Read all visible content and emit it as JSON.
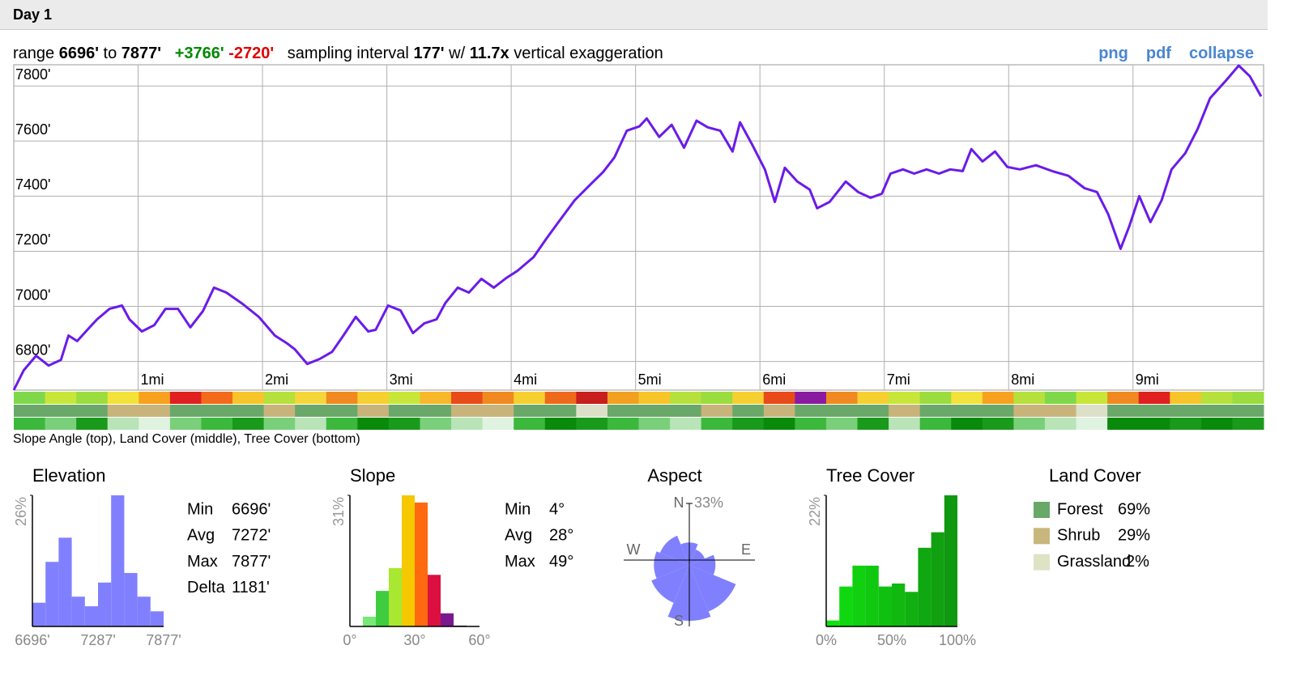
{
  "header": {
    "title": "Day 1"
  },
  "summary": {
    "range_label": "range",
    "min": "6696'",
    "to": "to",
    "max": "7877'",
    "gain": "+3766'",
    "loss": "-2720'",
    "interval_label": "sampling interval",
    "interval": "177'",
    "with": "w/",
    "exaggeration": "11.7x",
    "exaggeration_label": "vertical exaggeration"
  },
  "links": [
    "png",
    "pdf",
    "collapse"
  ],
  "chart_data": [
    {
      "type": "line",
      "color": "#6a1be8",
      "x": [
        0,
        0.08,
        0.18,
        0.28,
        0.38,
        0.44,
        0.51,
        0.61,
        0.67,
        0.77,
        0.87,
        0.93,
        1.03,
        1.13,
        1.22,
        1.32,
        1.42,
        1.52,
        1.61,
        1.71,
        1.84,
        1.97,
        2.1,
        2.2,
        2.26,
        2.36,
        2.46,
        2.56,
        2.65,
        2.75,
        2.85,
        2.91,
        3.01,
        3.11,
        3.21,
        3.3,
        3.4,
        3.47,
        3.57,
        3.66,
        3.76,
        3.86,
        3.96,
        4.05,
        4.18,
        4.28,
        4.38,
        4.51,
        4.64,
        4.74,
        4.83,
        4.93,
        5.03,
        5.09,
        5.19,
        5.29,
        5.39,
        5.49,
        5.58,
        5.68,
        5.78,
        5.84,
        5.94,
        6.04,
        6.12,
        6.2,
        6.3,
        6.4,
        6.46,
        6.56,
        6.69,
        6.79,
        6.89,
        6.98,
        7.05,
        7.15,
        7.24,
        7.34,
        7.44,
        7.53,
        7.63,
        7.7,
        7.79,
        7.89,
        7.99,
        8.09,
        8.22,
        8.35,
        8.48,
        8.61,
        8.71,
        8.8,
        8.9,
        8.97,
        9.05,
        9.14,
        9.23,
        9.31,
        9.42,
        9.52,
        9.62,
        9.75,
        9.85,
        9.94,
        10.03
      ],
      "values": [
        6696,
        6768,
        6821,
        6785,
        6806,
        6894,
        6874,
        6924,
        6953,
        6991,
        7003,
        6953,
        6909,
        6932,
        6991,
        6991,
        6924,
        6982,
        7068,
        7050,
        7009,
        6962,
        6894,
        6865,
        6844,
        6791,
        6809,
        6835,
        6894,
        6962,
        6909,
        6915,
        7003,
        6985,
        6903,
        6938,
        6953,
        7012,
        7068,
        7050,
        7100,
        7068,
        7103,
        7129,
        7179,
        7244,
        7306,
        7385,
        7444,
        7488,
        7541,
        7638,
        7653,
        7682,
        7615,
        7659,
        7576,
        7674,
        7650,
        7638,
        7562,
        7668,
        7585,
        7497,
        7379,
        7503,
        7453,
        7424,
        7356,
        7379,
        7453,
        7415,
        7394,
        7409,
        7482,
        7497,
        7482,
        7497,
        7482,
        7497,
        7491,
        7571,
        7526,
        7562,
        7506,
        7497,
        7512,
        7491,
        7474,
        7429,
        7415,
        7335,
        7209,
        7291,
        7400,
        7306,
        7385,
        7497,
        7556,
        7644,
        7756,
        7821,
        7874,
        7835,
        7762
      ],
      "xlim": [
        0,
        10.05
      ],
      "ylim": [
        6696,
        7877
      ],
      "xticks": [
        {
          "value": 1,
          "label": "1mi"
        },
        {
          "value": 2,
          "label": "2mi"
        },
        {
          "value": 3,
          "label": "3mi"
        },
        {
          "value": 4,
          "label": "4mi"
        },
        {
          "value": 5,
          "label": "5mi"
        },
        {
          "value": 6,
          "label": "6mi"
        },
        {
          "value": 7,
          "label": "7mi"
        },
        {
          "value": 8,
          "label": "8mi"
        },
        {
          "value": 9,
          "label": "9mi"
        }
      ],
      "yticks": [
        {
          "value": 6800,
          "label": "6800'"
        },
        {
          "value": 7000,
          "label": "7000'"
        },
        {
          "value": 7200,
          "label": "7200'"
        },
        {
          "value": 7400,
          "label": "7400'"
        },
        {
          "value": 7600,
          "label": "7600'"
        },
        {
          "value": 7800,
          "label": "7800'"
        }
      ],
      "grid": true
    },
    {
      "type": "histogram",
      "title": "Elevation",
      "color": "#8080ff",
      "bins": [
        6696,
        6814.1,
        6932.2,
        7050.3,
        7168.4,
        7286.5,
        7404.6,
        7522.7,
        7640.8,
        7758.9,
        7877
      ],
      "values": [
        4.7,
        12.8,
        17.6,
        5.9,
        4,
        8.7,
        26,
        10.6,
        5.9,
        3
      ],
      "xlim": [
        6696,
        7877
      ],
      "ylim": [
        0,
        26
      ],
      "xticks": [
        {
          "value": 6696,
          "label": "6696'"
        },
        {
          "value": 7287,
          "label": "7287'"
        },
        {
          "value": 7877,
          "label": "7877'"
        }
      ],
      "yticks": [
        {
          "value": 26,
          "label": "26%"
        }
      ],
      "stats": [
        [
          "Min",
          "6696'"
        ],
        [
          "Avg",
          "7272'"
        ],
        [
          "Max",
          "7877'"
        ],
        [
          "Delta",
          "1181'"
        ]
      ]
    },
    {
      "type": "histogram",
      "title": "Slope",
      "colors": [
        "#90ee90",
        "#78e878",
        "#40cc40",
        "#a8e830",
        "#f5c800",
        "#ff6a10",
        "#dc1040",
        "#7a1890",
        "#401060",
        "#000000"
      ],
      "bins": [
        0,
        6,
        12,
        18,
        24,
        30,
        36,
        42,
        48,
        54,
        60
      ],
      "values": [
        0,
        2.3,
        8.4,
        13.8,
        31,
        29.3,
        12.2,
        3.1,
        0.2,
        0
      ],
      "xlim": [
        0,
        60
      ],
      "ylim": [
        0,
        31
      ],
      "xticks": [
        {
          "value": 0,
          "label": "0°"
        },
        {
          "value": 30,
          "label": "30°"
        },
        {
          "value": 60,
          "label": "60°"
        }
      ],
      "yticks": [
        {
          "value": 31,
          "label": "31%"
        }
      ],
      "stats": [
        [
          "Min",
          "4°"
        ],
        [
          "Avg",
          "28°"
        ],
        [
          "Max",
          "49°"
        ]
      ]
    },
    {
      "type": "rose",
      "title": "Aspect",
      "color": "#8080ff",
      "categories": [
        "N",
        null,
        "E",
        null,
        "S",
        null,
        "W",
        null
      ],
      "values": [
        12,
        9,
        14,
        27,
        30,
        22,
        19,
        17
      ],
      "rlim": [
        0,
        33
      ],
      "rticks": [
        {
          "value": 33,
          "label": "33%"
        }
      ]
    },
    {
      "type": "histogram",
      "title": "Tree Cover",
      "colors": [
        "#10e010",
        "#10d810",
        "#10d010",
        "#10c810",
        "#10c010",
        "#10b810",
        "#10b010",
        "#10a810",
        "#10a010",
        "#109810"
      ],
      "bins": [
        0,
        10,
        20,
        30,
        40,
        50,
        60,
        70,
        80,
        90,
        100
      ],
      "values": [
        1,
        6.7,
        10.2,
        10.2,
        6.7,
        7.2,
        5.8,
        13.2,
        15.8,
        22
      ],
      "xlim": [
        0,
        100
      ],
      "ylim": [
        0,
        22
      ],
      "xticks": [
        {
          "value": 0,
          "label": "0%"
        },
        {
          "value": 50,
          "label": "50%"
        },
        {
          "value": 100,
          "label": "100%"
        }
      ],
      "yticks": [
        {
          "value": 22,
          "label": "22%"
        }
      ]
    }
  ],
  "strips": {
    "caption": "Slope Angle (top), Land Cover (middle), Tree Cover (bottom)",
    "slope": [
      "#7fd84a",
      "#c8e63a",
      "#9bdc3e",
      "#f2e23a",
      "#f7a21f",
      "#e02020",
      "#f26a1a",
      "#f7c52a",
      "#b6e03c",
      "#f5d63a",
      "#f08a20",
      "#f5d030",
      "#c8e63a",
      "#f7b82a",
      "#e84a1a",
      "#f08a20",
      "#f5d030",
      "#ee6a1a",
      "#c81e1e",
      "#f2a020",
      "#f7c52a",
      "#b6e03c",
      "#9bdc3e",
      "#f5d030",
      "#e84a1a",
      "#8a1aa0",
      "#f08a20",
      "#f5d030",
      "#c8e63a",
      "#9bdc3e",
      "#f2e23a",
      "#f7a21f",
      "#b6e03c",
      "#7fd84a",
      "#c8e63a",
      "#f08a20",
      "#e02020",
      "#f7c52a",
      "#b6e03c",
      "#9bdc3e"
    ],
    "land": [
      "#6aa86a",
      "#6aa86a",
      "#6aa86a",
      "#c8b47a",
      "#c8b47a",
      "#6aa86a",
      "#6aa86a",
      "#6aa86a",
      "#c8b47a",
      "#6aa86a",
      "#6aa86a",
      "#c8b47a",
      "#6aa86a",
      "#6aa86a",
      "#c8b47a",
      "#c8b47a",
      "#6aa86a",
      "#6aa86a",
      "#dde0c8",
      "#6aa86a",
      "#6aa86a",
      "#6aa86a",
      "#c8b47a",
      "#6aa86a",
      "#c8b47a",
      "#6aa86a",
      "#6aa86a",
      "#6aa86a",
      "#c8b47a",
      "#6aa86a",
      "#6aa86a",
      "#6aa86a",
      "#c8b47a",
      "#c8b47a",
      "#dde0c8",
      "#6aa86a",
      "#6aa86a",
      "#6aa86a",
      "#6aa86a",
      "#6aa86a"
    ],
    "tree": [
      "#3cb83c",
      "#7ad07a",
      "#1a9a1a",
      "#b8e4b8",
      "#e0f2e0",
      "#7ad07a",
      "#3cb83c",
      "#1a9a1a",
      "#7ad07a",
      "#b8e4b8",
      "#3cb83c",
      "#0a8a0a",
      "#1a9a1a",
      "#7ad07a",
      "#b8e4b8",
      "#e0f2e0",
      "#3cb83c",
      "#0a8a0a",
      "#1a9a1a",
      "#3cb83c",
      "#7ad07a",
      "#b8e4b8",
      "#3cb83c",
      "#1a9a1a",
      "#0a8a0a",
      "#3cb83c",
      "#7ad07a",
      "#1a9a1a",
      "#b8e4b8",
      "#3cb83c",
      "#0a8a0a",
      "#1a9a1a",
      "#7ad07a",
      "#b8e4b8",
      "#e0f2e0",
      "#0a8a0a",
      "#0a8a0a",
      "#1a9a1a",
      "#0a8a0a",
      "#1a9a1a"
    ]
  },
  "land_cover": {
    "title": "Land Cover",
    "items": [
      {
        "name": "Forest",
        "color": "#68a868",
        "value": "69%"
      },
      {
        "name": "Shrub",
        "color": "#c8b77c",
        "value": "29%"
      },
      {
        "name": "Grassland",
        "color": "#dfe3c6",
        "value": "2%"
      }
    ]
  }
}
